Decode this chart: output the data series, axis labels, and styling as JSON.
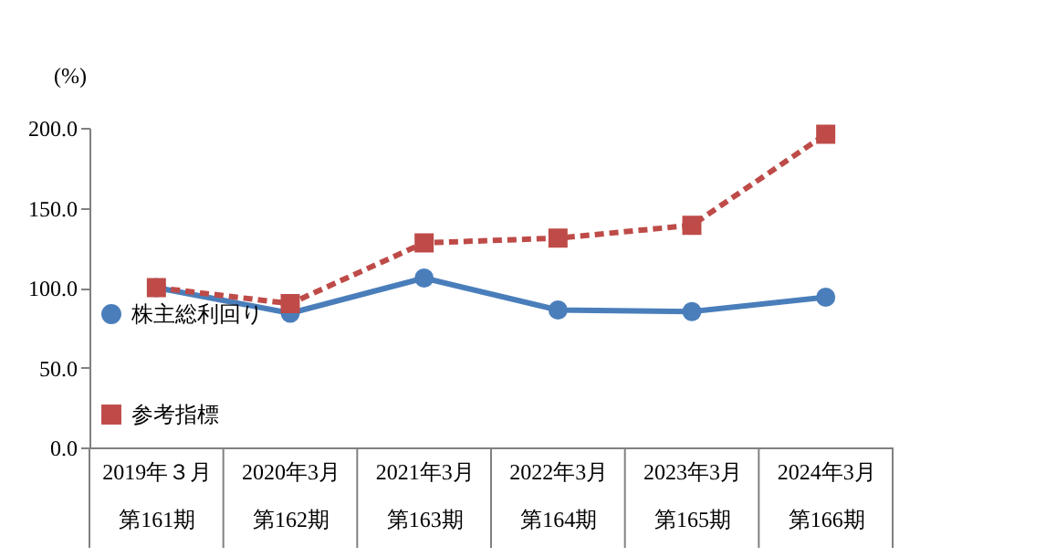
{
  "chart_data": {
    "type": "line",
    "ylabel": "(%)",
    "categories": [
      "2019年３月第161期",
      "2020年3月第162期",
      "2021年3月第163期",
      "2022年3月第164期",
      "2023年3月第165期",
      "2024年3月第166期"
    ],
    "series": [
      {
        "name": "株主総利回り",
        "color": "#4a7ebb",
        "values": [
          100,
          84,
          106,
          86,
          85,
          94
        ],
        "marker": "circle",
        "line_style": "solid"
      },
      {
        "name": "参考指標",
        "color": "#be4b48",
        "values": [
          100,
          90,
          128,
          131,
          139,
          196
        ],
        "marker": "square",
        "line_style": "dashed"
      }
    ],
    "ylim": [
      0,
      200
    ],
    "yticks": [
      {
        "value": 0,
        "label": "0.0"
      },
      {
        "value": 50,
        "label": "50.0"
      },
      {
        "value": 100,
        "label": "100.0"
      },
      {
        "value": 150,
        "label": "150.0"
      },
      {
        "value": 200,
        "label": "200.0"
      }
    ],
    "grid": false,
    "legend": "bottom left"
  }
}
